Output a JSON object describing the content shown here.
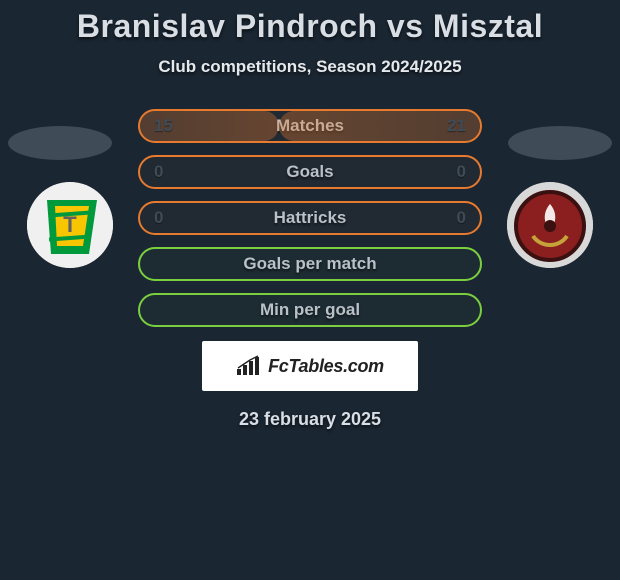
{
  "title": "Branislav Pindroch vs Misztal",
  "subtitle": "Club competitions, Season 2024/2025",
  "date": "23 february 2025",
  "brand": {
    "text": "FcTables.com"
  },
  "colors": {
    "background": "#1a2632",
    "text_light": "#d8dee4",
    "text_dim": "#b9c1c8",
    "value_dark": "#3f4b56",
    "ellipse": "#3f4b56",
    "orange": "#e67a2e",
    "green": "#7bcf3f",
    "brand_bg": "#ffffff",
    "brand_text": "#222222"
  },
  "left_player": {
    "ellipse_color": "#3f4b56",
    "logo_bg": "#f0f0f0",
    "logo_colors": {
      "green": "#009a3d",
      "yellow": "#f7c600",
      "gray": "#616161"
    }
  },
  "right_player": {
    "ellipse_color": "#3f4b56",
    "logo_bg": "#d8d8d8",
    "logo_colors": {
      "red": "#8b1f1f",
      "dark": "#3a1010",
      "white": "#ffffff",
      "gold": "#c6a23a"
    }
  },
  "rows": [
    {
      "id": "matches",
      "style": "orange",
      "label": "Matches",
      "left": "15",
      "right": "21",
      "left_fill_pct": 41,
      "right_fill_pct": 59
    },
    {
      "id": "goals",
      "style": "orange",
      "label": "Goals",
      "left": "0",
      "right": "0",
      "left_fill_pct": 0,
      "right_fill_pct": 0
    },
    {
      "id": "hattricks",
      "style": "orange",
      "label": "Hattricks",
      "left": "0",
      "right": "0",
      "left_fill_pct": 0,
      "right_fill_pct": 0
    },
    {
      "id": "gpm",
      "style": "green",
      "label": "Goals per match",
      "left": "",
      "right": "",
      "left_fill_pct": 0,
      "right_fill_pct": 0
    },
    {
      "id": "mpg",
      "style": "green",
      "label": "Min per goal",
      "left": "",
      "right": "",
      "left_fill_pct": 0,
      "right_fill_pct": 0
    }
  ]
}
